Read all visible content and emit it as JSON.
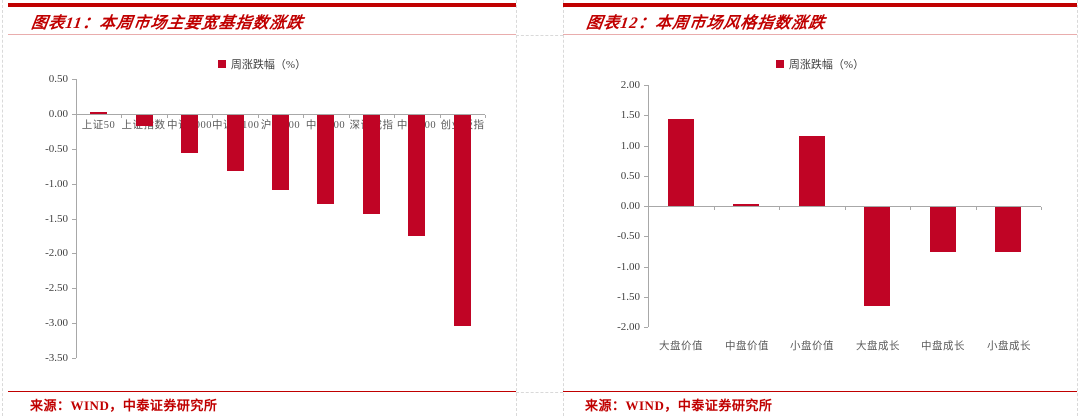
{
  "panels": [
    {
      "title": "图表11：本周市场主要宽基指数涨跌",
      "legend": "周涨跌幅（%）",
      "source": "来源：WIND，中泰证券研究所"
    },
    {
      "title": "图表12：本周市场风格指数涨跌",
      "legend": "周涨跌幅（%）",
      "source": "来源：WIND，中泰证券研究所"
    }
  ],
  "colors": {
    "accent_red": "#C00000",
    "bar_red": "#C00425",
    "pink_line": "#E9ADAD",
    "axis_gray": "#A8A8A8",
    "tick_label_text": "#404040",
    "category_label_text": "#595959"
  },
  "chart_data": [
    {
      "type": "bar",
      "title": "图表11：本周市场主要宽基指数涨跌",
      "legend_entries": [
        "周涨跌幅（%）"
      ],
      "categories": [
        "上证50",
        "上证指数",
        "中证1000",
        "中证A100",
        "沪深300",
        "中证500",
        "深证成指",
        "中小100",
        "创业板指"
      ],
      "values": [
        0.03,
        -0.16,
        -0.54,
        -0.8,
        -1.08,
        -1.27,
        -1.42,
        -1.73,
        -3.03
      ],
      "xlabel": "",
      "ylabel": "",
      "ylim": [
        -3.5,
        0.5
      ],
      "ytick_step": 0.5,
      "grid": false,
      "legend_position": "top-center"
    },
    {
      "type": "bar",
      "title": "图表12：本周市场风格指数涨跌",
      "legend_entries": [
        "周涨跌幅（%）"
      ],
      "categories": [
        "大盘价值",
        "中盘价值",
        "小盘价值",
        "大盘成长",
        "中盘成长",
        "小盘成长"
      ],
      "values": [
        1.44,
        0.03,
        1.15,
        -1.64,
        -0.74,
        -0.74
      ],
      "xlabel": "",
      "ylabel": "",
      "ylim": [
        -2.0,
        2.0
      ],
      "ytick_step": 0.5,
      "grid": false,
      "legend_position": "top-center"
    }
  ]
}
